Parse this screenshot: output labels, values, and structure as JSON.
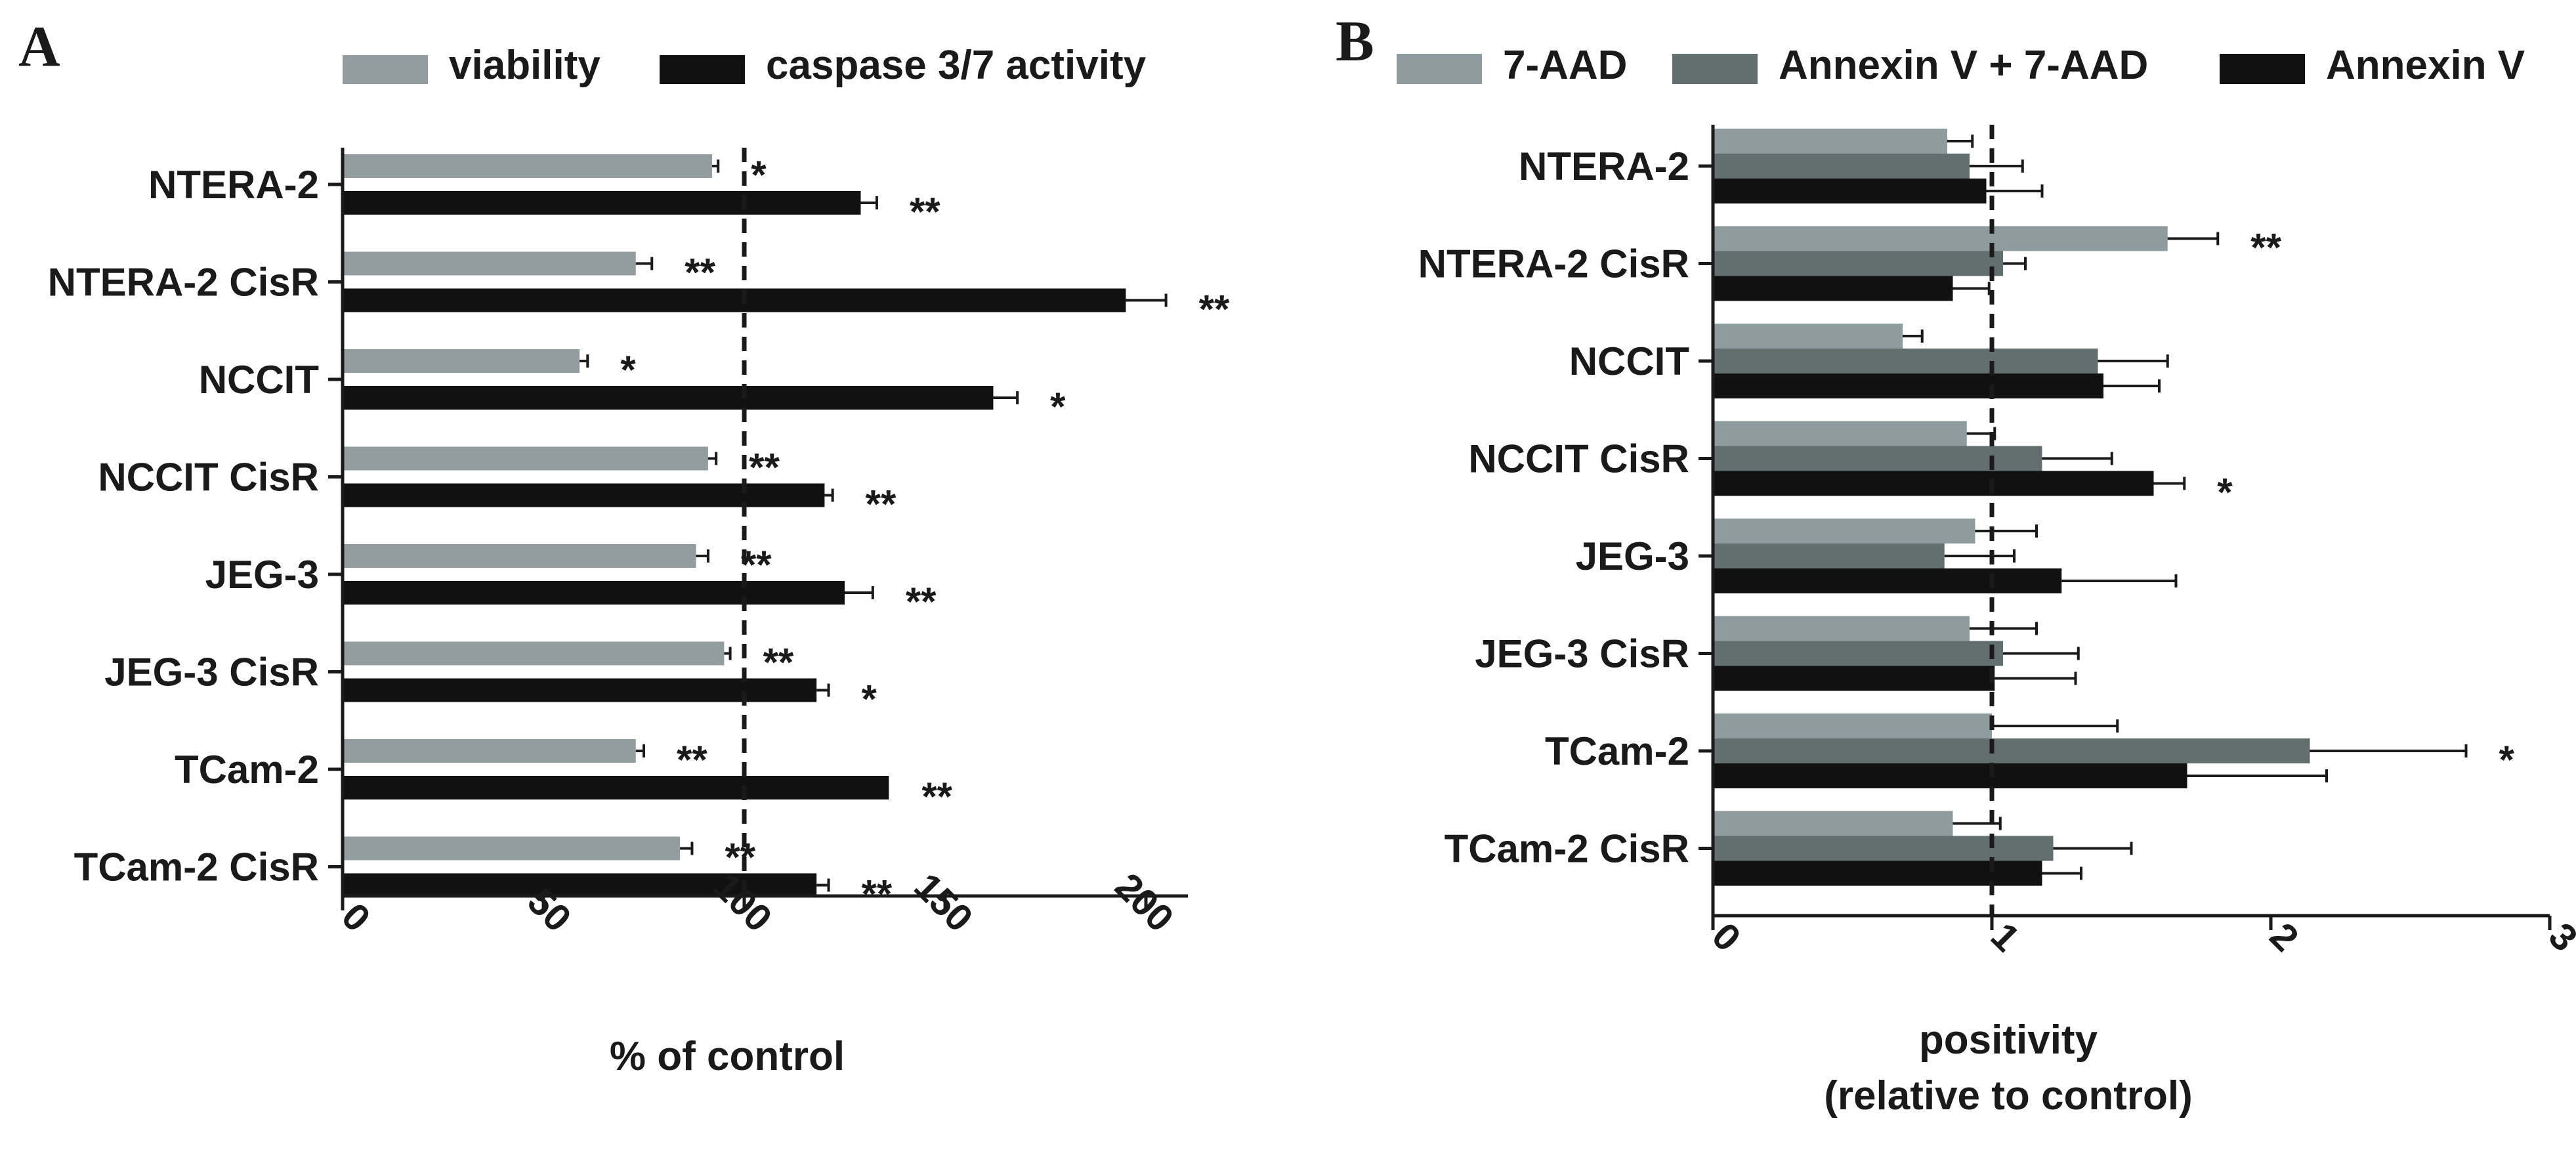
{
  "figure": {
    "panel_a_letter": "A",
    "panel_b_letter": "B"
  },
  "chart_data": [
    {
      "type": "bar",
      "orientation": "horizontal",
      "panel": "A",
      "title": "",
      "xlabel": "% of control",
      "ylabel": "",
      "xlim": [
        0,
        210
      ],
      "xticks": [
        "0",
        "50",
        "100",
        "150",
        "200"
      ],
      "reference_line": 100,
      "legend_position": "top",
      "categories": [
        "NTERA-2",
        "NTERA-2 CisR",
        "NCCIT",
        "NCCIT CisR",
        "JEG-3",
        "JEG-3 CisR",
        "TCam-2",
        "TCam-2 CisR"
      ],
      "series": [
        {
          "name": "viability",
          "color": "#939d9f",
          "values": [
            92,
            73,
            59,
            91,
            88,
            95,
            73,
            84
          ],
          "errors": [
            1.5,
            4,
            2,
            2,
            3,
            1.5,
            2,
            3
          ],
          "significance": [
            "*",
            "**",
            "*",
            "**",
            "**",
            "**",
            "**",
            "**"
          ]
        },
        {
          "name": "caspase 3/7 activity",
          "color": "#111111",
          "values": [
            129,
            195,
            162,
            120,
            125,
            118,
            136,
            118
          ],
          "errors": [
            4,
            10,
            6,
            2,
            7,
            3,
            0,
            3
          ],
          "significance": [
            "**",
            "**",
            "*",
            "**",
            "**",
            "*",
            "**",
            "**"
          ]
        }
      ]
    },
    {
      "type": "bar",
      "orientation": "horizontal",
      "panel": "B",
      "title": "",
      "xlabel": "positivity",
      "xlabel_line2": "(relative to control)",
      "ylabel": "",
      "xlim": [
        0,
        3
      ],
      "xticks": [
        "0",
        "1",
        "2",
        "3"
      ],
      "reference_line": 1,
      "legend_position": "top",
      "categories": [
        "NTERA-2",
        "NTERA-2 CisR",
        "NCCIT",
        "NCCIT CisR",
        "JEG-3",
        "JEG-3 CisR",
        "TCam-2",
        "TCam-2 CisR"
      ],
      "series": [
        {
          "name": "7-AAD",
          "color": "#8f9c9f",
          "values": [
            0.84,
            1.63,
            0.68,
            0.91,
            0.94,
            0.92,
            1.0,
            0.86
          ],
          "errors": [
            0.09,
            0.18,
            0.07,
            0.1,
            0.22,
            0.24,
            0.45,
            0.17
          ],
          "significance": [
            "",
            "**",
            "",
            "",
            "",
            "",
            "",
            ""
          ]
        },
        {
          "name": "Annexin V + 7-AAD",
          "color": "#636f6e",
          "values": [
            0.92,
            1.04,
            1.38,
            1.18,
            0.83,
            1.04,
            2.14,
            1.22
          ],
          "errors": [
            0.19,
            0.08,
            0.25,
            0.25,
            0.25,
            0.27,
            0.56,
            0.28
          ],
          "significance": [
            "",
            "",
            "",
            "",
            "",
            "",
            "*",
            ""
          ]
        },
        {
          "name": "Annexin V",
          "color": "#111111",
          "values": [
            0.98,
            0.86,
            1.4,
            1.58,
            1.25,
            1.01,
            1.7,
            1.18
          ],
          "errors": [
            0.2,
            0.13,
            0.2,
            0.11,
            0.41,
            0.29,
            0.5,
            0.14
          ],
          "significance": [
            "",
            "",
            "",
            "*",
            "",
            "",
            "",
            ""
          ]
        }
      ]
    }
  ]
}
